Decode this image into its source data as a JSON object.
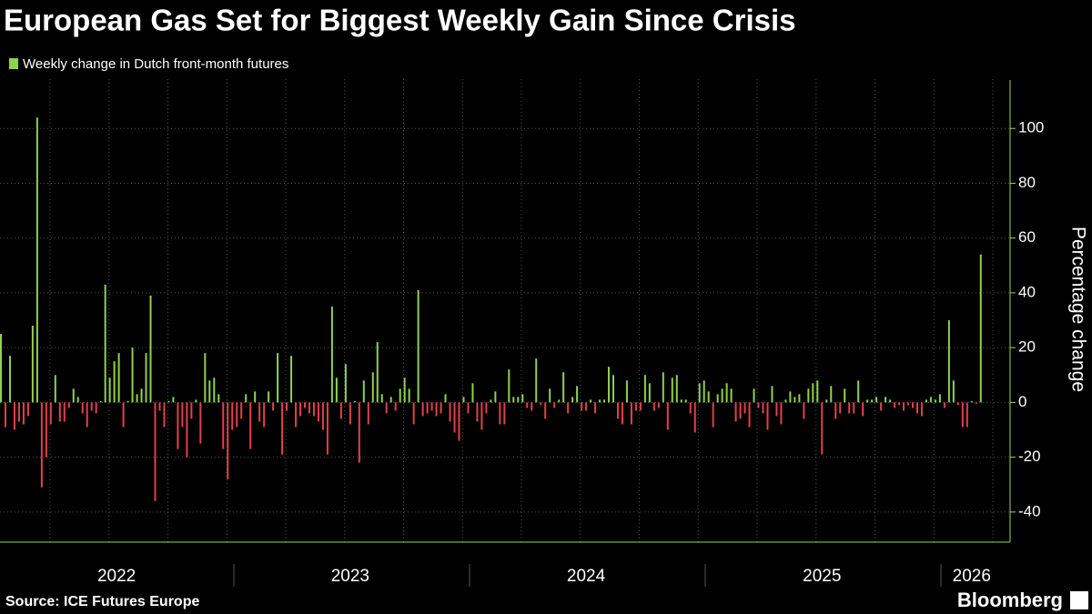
{
  "chart_data": {
    "type": "bar",
    "title": "European Gas Set for Biggest Weekly Gain Since Crisis",
    "y_label": "Percentage change",
    "source": "Source: ICE Futures Europe",
    "brand": "Bloomberg",
    "negative_color": "#e2414b",
    "grid": true,
    "ylim": [
      -51,
      118
    ],
    "yticks": [
      -40,
      -20,
      0,
      20,
      40,
      60,
      80,
      100
    ],
    "xticks": [
      {
        "value": 25.5,
        "label": "2022"
      },
      {
        "value": 77,
        "label": "2023"
      },
      {
        "value": 129,
        "label": "2024"
      },
      {
        "value": 181,
        "label": "2025"
      },
      {
        "value": 214,
        "label": "2026"
      }
    ],
    "series": [
      {
        "name": "Weekly change in Dutch front-month futures",
        "color": "#8fd14f",
        "values": [
          25,
          -9,
          17,
          -10,
          -7,
          -8,
          -5,
          28,
          104,
          -31,
          -20,
          -8,
          10,
          -7,
          -7,
          -2,
          5,
          2,
          -4,
          -9,
          -3,
          -4,
          0.5,
          43,
          9,
          15,
          18,
          -9,
          0.5,
          20,
          3,
          5,
          18,
          39,
          -36,
          -3,
          -9,
          0.5,
          2,
          -17,
          -9,
          -20,
          -6,
          1,
          -15,
          18,
          8,
          9,
          3,
          -17,
          -28,
          -10,
          -9,
          -6,
          3,
          -17,
          4,
          -7,
          -9,
          4,
          -3,
          18,
          -19,
          -3,
          17,
          -9,
          -5,
          -2,
          -4,
          -5,
          -7,
          -10,
          -19,
          35,
          9,
          -6,
          14,
          -8,
          0.5,
          -22,
          8,
          -8,
          11,
          22,
          3,
          -4,
          2,
          -3,
          5,
          9,
          5,
          -8,
          41,
          -5,
          -4,
          -3,
          -5,
          -4,
          3,
          -7,
          -11,
          -14,
          2,
          -4,
          7,
          -7,
          -10,
          -4,
          1,
          4,
          -8,
          -8,
          12,
          2,
          2,
          3,
          -2,
          -3,
          16,
          -1,
          -6,
          5,
          -2,
          1,
          11,
          -4,
          2,
          6,
          -3,
          -3,
          1,
          -4,
          1,
          1,
          13,
          10,
          -6,
          -8,
          8,
          -8,
          -3,
          -3,
          10,
          7,
          -3,
          -2,
          11,
          -10,
          9,
          10,
          1,
          1,
          -4,
          -11,
          7,
          8,
          4,
          -9,
          3,
          5,
          7,
          5,
          -7,
          -6,
          -4,
          -9,
          5,
          -2,
          -4,
          -10,
          6,
          -5,
          -8,
          1,
          4,
          2,
          3,
          -6,
          5,
          7,
          8,
          -19,
          1,
          6,
          -6,
          -4,
          5,
          -4,
          -4,
          8,
          -5,
          1,
          1,
          2,
          -3,
          2,
          1,
          -2,
          -1,
          -3,
          -1,
          -2,
          -4,
          -5,
          1,
          2,
          1,
          3,
          -2,
          30,
          8,
          -1,
          -9,
          -9,
          0.5,
          -0.5,
          54
        ]
      }
    ]
  }
}
